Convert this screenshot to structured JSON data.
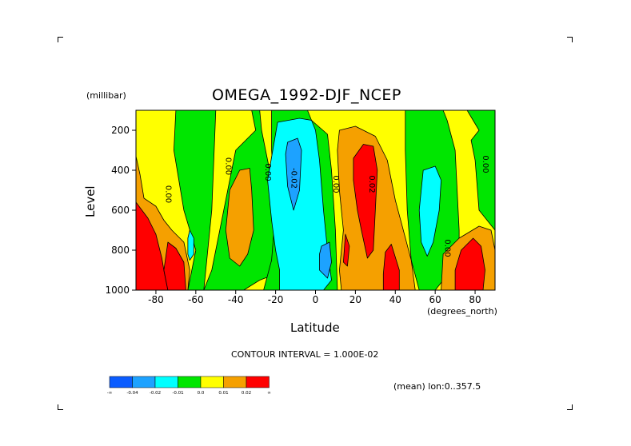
{
  "title": "OMEGA_1992-DJF_NCEP",
  "units_label": "(millibar)",
  "x_axis": {
    "label": "Latitude",
    "units": "(degrees_north)",
    "ticks": [
      "-80",
      "-60",
      "-40",
      "-20",
      "0",
      "20",
      "40",
      "60",
      "80"
    ]
  },
  "y_axis": {
    "label": "Level",
    "ticks": [
      "200",
      "400",
      "600",
      "800",
      "1000"
    ]
  },
  "footer": {
    "contour_interval": "CONTOUR INTERVAL = 1.000E-02",
    "mean_info": "(mean) lon:0..357.5"
  },
  "colorbar": {
    "labels": [
      "-∞",
      "-0.04",
      "-0.02",
      "-0.01",
      "0.0",
      "0.01",
      "0.02",
      "∞"
    ],
    "colors": [
      "#0a5cff",
      "#1da2ff",
      "#00ffff",
      "#00e600",
      "#ffff00",
      "#f5a000",
      "#ff0000"
    ]
  },
  "chart_data": {
    "type": "heatmap",
    "title": "OMEGA_1992-DJF_NCEP",
    "xlabel": "Latitude",
    "ylabel": "Level",
    "xlim": [
      -90,
      90
    ],
    "ylim": [
      1000,
      100
    ],
    "y_reversed": true,
    "contour_interval": 0.01,
    "contour_labels": [
      {
        "text": "0.00",
        "x": -75,
        "y": 520
      },
      {
        "text": "0.00",
        "x": -45,
        "y": 380
      },
      {
        "text": "0.00",
        "x": -25,
        "y": 410
      },
      {
        "text": "-0.02",
        "x": -12,
        "y": 440
      },
      {
        "text": "0.00",
        "x": 9,
        "y": 470
      },
      {
        "text": "0.02",
        "x": 27,
        "y": 470
      },
      {
        "text": "0.00",
        "x": 65,
        "y": 790
      },
      {
        "text": "0.00",
        "x": 84,
        "y": 370
      }
    ],
    "regions": [
      {
        "class": "0.0 to 0.01",
        "color": "#ffff00",
        "polygon": [
          [
            -90,
            100
          ],
          [
            90,
            100
          ],
          [
            90,
            1000
          ],
          [
            -90,
            1000
          ]
        ]
      },
      {
        "class": "-0.01 to 0.0",
        "color": "#00e600",
        "polygon": [
          [
            -70,
            100
          ],
          [
            -50,
            100
          ],
          [
            -52,
            600
          ],
          [
            -56,
            1000
          ],
          [
            -64,
            1000
          ],
          [
            -60,
            800
          ],
          [
            -66,
            600
          ],
          [
            -71,
            300
          ]
        ]
      },
      {
        "class": "-0.01 to 0.0",
        "color": "#00e600",
        "polygon": [
          [
            -48,
            100
          ],
          [
            -32,
            100
          ],
          [
            -30,
            200
          ],
          [
            -40,
            300
          ],
          [
            -48,
            700
          ],
          [
            -52,
            900
          ],
          [
            -56,
            1000
          ],
          [
            -36,
            1000
          ],
          [
            -28,
            950
          ],
          [
            -20,
            920
          ],
          [
            -18,
            700
          ],
          [
            -21,
            500
          ],
          [
            -27,
            200
          ],
          [
            -28,
            100
          ],
          [
            -42,
            100
          ]
        ]
      },
      {
        "class": "-0.01 to 0.0",
        "color": "#00e600",
        "polygon": [
          [
            -22,
            100
          ],
          [
            -4,
            100
          ],
          [
            -2,
            150
          ],
          [
            6,
            220
          ],
          [
            8,
            400
          ],
          [
            10,
            700
          ],
          [
            11,
            1000
          ],
          [
            -26,
            1000
          ],
          [
            -22,
            850
          ],
          [
            -20,
            600
          ],
          [
            -22,
            300
          ]
        ]
      },
      {
        "class": "-0.01 to 0.0",
        "color": "#00e600",
        "polygon": [
          [
            45,
            100
          ],
          [
            64,
            100
          ],
          [
            66,
            150
          ],
          [
            70,
            300
          ],
          [
            72,
            700
          ],
          [
            72,
            850
          ],
          [
            68,
            900
          ],
          [
            60,
            1000
          ],
          [
            52,
            1000
          ],
          [
            48,
            850
          ],
          [
            46,
            600
          ],
          [
            45,
            300
          ]
        ]
      },
      {
        "class": "-0.01 to 0.0",
        "color": "#00e600",
        "polygon": [
          [
            76,
            100
          ],
          [
            90,
            100
          ],
          [
            90,
            700
          ],
          [
            82,
            600
          ],
          [
            80,
            350
          ],
          [
            78,
            250
          ],
          [
            82,
            200
          ]
        ]
      },
      {
        "class": "-0.01 to 0.0",
        "color": "#00e600",
        "polygon": [
          [
            -90,
            560
          ],
          [
            -82,
            640
          ],
          [
            -80,
            720
          ],
          [
            -86,
            1000
          ],
          [
            -90,
            1000
          ]
        ]
      },
      {
        "class": "-0.02 to -0.01",
        "color": "#00ffff",
        "polygon": [
          [
            -19,
            160
          ],
          [
            -8,
            140
          ],
          [
            -2,
            150
          ],
          [
            0,
            200
          ],
          [
            2,
            350
          ],
          [
            4,
            600
          ],
          [
            6,
            800
          ],
          [
            8,
            950
          ],
          [
            4,
            1000
          ],
          [
            -18,
            1000
          ],
          [
            -18,
            900
          ],
          [
            -20,
            800
          ],
          [
            -22,
            650
          ],
          [
            -24,
            450
          ]
        ]
      },
      {
        "class": "-0.02 to -0.01",
        "color": "#00ffff",
        "polygon": [
          [
            54,
            400
          ],
          [
            60,
            380
          ],
          [
            63,
            450
          ],
          [
            62,
            600
          ],
          [
            59,
            760
          ],
          [
            56,
            830
          ],
          [
            53,
            760
          ],
          [
            52,
            600
          ]
        ]
      },
      {
        "class": "-0.02 to -0.01",
        "color": "#00ffff",
        "polygon": [
          [
            -63,
            700
          ],
          [
            -61,
            740
          ],
          [
            -61,
            820
          ],
          [
            -63,
            850
          ],
          [
            -64,
            820
          ],
          [
            -64,
            740
          ]
        ]
      },
      {
        "class": "-0.04 to -0.02",
        "color": "#1da2ff",
        "polygon": [
          [
            -14,
            260
          ],
          [
            -9,
            240
          ],
          [
            -7,
            300
          ],
          [
            -8,
            500
          ],
          [
            -11,
            600
          ],
          [
            -14,
            480
          ],
          [
            -15,
            320
          ]
        ]
      },
      {
        "class": "-0.04 to -0.02",
        "color": "#1da2ff",
        "polygon": [
          [
            3,
            780
          ],
          [
            7,
            760
          ],
          [
            8,
            860
          ],
          [
            6,
            940
          ],
          [
            2,
            900
          ],
          [
            2,
            820
          ]
        ]
      },
      {
        "class": "0.01 to 0.02",
        "color": "#f5a000",
        "polygon": [
          [
            -90,
            330
          ],
          [
            -88,
            420
          ],
          [
            -86,
            540
          ],
          [
            -80,
            580
          ],
          [
            -76,
            650
          ],
          [
            -72,
            700
          ],
          [
            -66,
            760
          ],
          [
            -63,
            900
          ],
          [
            -64,
            1000
          ],
          [
            -90,
            1000
          ]
        ]
      },
      {
        "class": "0.01 to 0.02",
        "color": "#f5a000",
        "polygon": [
          [
            -38,
            400
          ],
          [
            -33,
            390
          ],
          [
            -32,
            500
          ],
          [
            -31,
            700
          ],
          [
            -34,
            820
          ],
          [
            -38,
            880
          ],
          [
            -43,
            840
          ],
          [
            -45,
            700
          ],
          [
            -43,
            500
          ]
        ]
      },
      {
        "class": "0.01 to 0.02",
        "color": "#f5a000",
        "polygon": [
          [
            12,
            200
          ],
          [
            20,
            180
          ],
          [
            30,
            230
          ],
          [
            36,
            350
          ],
          [
            40,
            550
          ],
          [
            44,
            700
          ],
          [
            48,
            850
          ],
          [
            50,
            1000
          ],
          [
            13,
            1000
          ],
          [
            12,
            900
          ],
          [
            14,
            700
          ],
          [
            12,
            500
          ],
          [
            11,
            300
          ]
        ]
      },
      {
        "class": "0.01 to 0.02",
        "color": "#f5a000",
        "polygon": [
          [
            64,
            820
          ],
          [
            72,
            740
          ],
          [
            82,
            680
          ],
          [
            88,
            700
          ],
          [
            90,
            800
          ],
          [
            90,
            1000
          ],
          [
            63,
            1000
          ]
        ]
      },
      {
        "class": "0.02 to inf",
        "color": "#ff0000",
        "polygon": [
          [
            19,
            340
          ],
          [
            24,
            270
          ],
          [
            29,
            280
          ],
          [
            31,
            400
          ],
          [
            30,
            600
          ],
          [
            29,
            800
          ],
          [
            26,
            840
          ],
          [
            23,
            700
          ],
          [
            21,
            600
          ],
          [
            19,
            450
          ]
        ]
      },
      {
        "class": "0.02 to inf",
        "color": "#ff0000",
        "polygon": [
          [
            15,
            720
          ],
          [
            17,
            780
          ],
          [
            16,
            880
          ],
          [
            14,
            860
          ]
        ]
      },
      {
        "class": "0.02 to inf",
        "color": "#ff0000",
        "polygon": [
          [
            35,
            810
          ],
          [
            38,
            770
          ],
          [
            42,
            900
          ],
          [
            42,
            1000
          ],
          [
            34,
            1000
          ],
          [
            34,
            920
          ]
        ]
      },
      {
        "class": "0.02 to inf",
        "color": "#ff0000",
        "polygon": [
          [
            -90,
            560
          ],
          [
            -84,
            640
          ],
          [
            -80,
            720
          ],
          [
            -77,
            840
          ],
          [
            -76,
            900
          ],
          [
            -74,
            1000
          ],
          [
            -90,
            1000
          ]
        ]
      },
      {
        "class": "0.02 to inf",
        "color": "#ff0000",
        "polygon": [
          [
            -74,
            760
          ],
          [
            -70,
            790
          ],
          [
            -66,
            860
          ],
          [
            -65,
            1000
          ],
          [
            -74,
            1000
          ],
          [
            -76,
            900
          ]
        ]
      },
      {
        "class": "0.02 to inf",
        "color": "#ff0000",
        "polygon": [
          [
            73,
            800
          ],
          [
            79,
            740
          ],
          [
            83,
            780
          ],
          [
            85,
            900
          ],
          [
            84,
            1000
          ],
          [
            70,
            1000
          ],
          [
            70,
            900
          ]
        ]
      }
    ]
  }
}
